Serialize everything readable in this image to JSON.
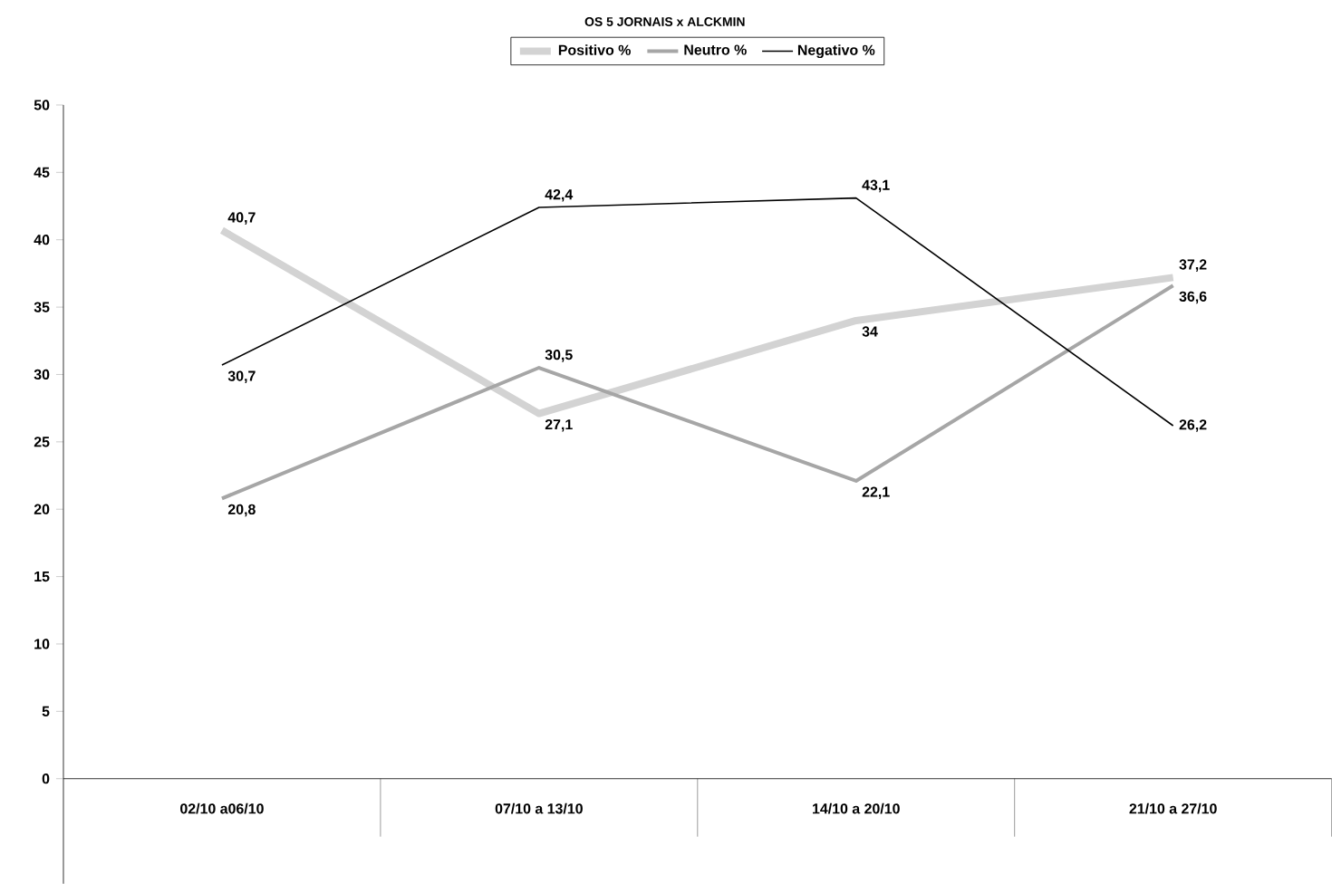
{
  "chart_data": {
    "type": "line",
    "title": "OS 5 JORNAIS x ALCKMIN",
    "categories": [
      "02/10 a06/10",
      "07/10 a 13/10",
      "14/10 a 20/10",
      "21/10 a 27/10"
    ],
    "series": [
      {
        "name": "Positivo %",
        "color": "#d3d3d3",
        "values": [
          40.7,
          27.1,
          34,
          37.2
        ],
        "value_labels": [
          "40,7",
          "27,1",
          "34",
          "37,2"
        ]
      },
      {
        "name": "Neutro %",
        "color": "#a6a6a6",
        "values": [
          20.8,
          30.5,
          22.1,
          36.6
        ],
        "value_labels": [
          "20,8",
          "30,5",
          "22,1",
          "36,6"
        ]
      },
      {
        "name": "Negativo %",
        "color": "#000000",
        "values": [
          30.7,
          42.4,
          43.1,
          26.2
        ],
        "value_labels": [
          "30,7",
          "42,4",
          "43,1",
          "26,2"
        ]
      }
    ],
    "ylim": [
      0,
      50
    ],
    "yticks": [
      0,
      5,
      10,
      15,
      20,
      25,
      30,
      35,
      40,
      45,
      50
    ],
    "grid": false,
    "legend": "top",
    "marker": "none",
    "line_style": "solid"
  }
}
